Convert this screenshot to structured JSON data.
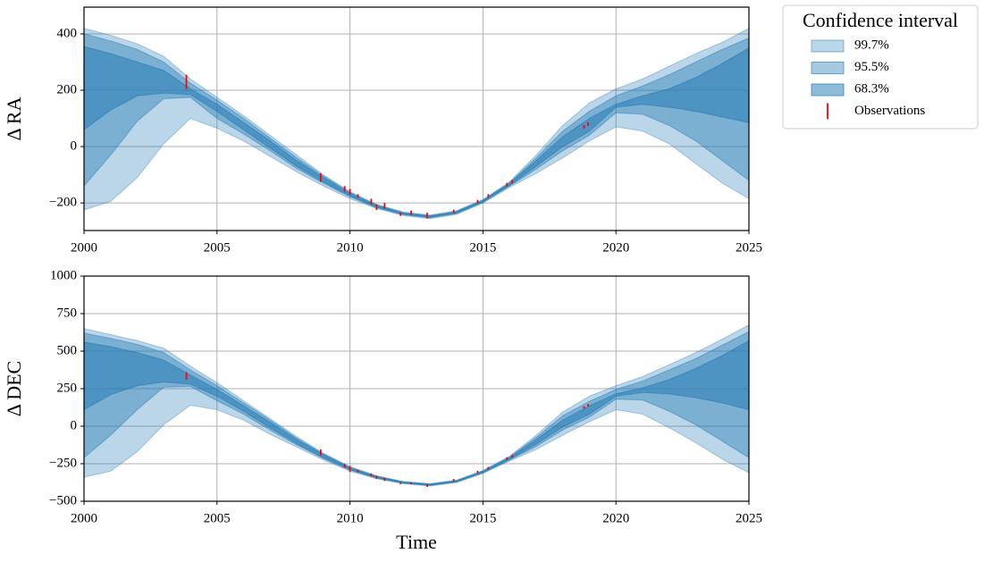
{
  "chart_data": [
    {
      "type": "band",
      "ylabel": "Δ RA",
      "xlim": [
        2000,
        2025
      ],
      "xticks": [
        2000,
        2005,
        2010,
        2015,
        2020,
        2025
      ],
      "ylim": [
        -298,
        495
      ],
      "yticks": [
        {
          "value": -200,
          "label": "−200"
        },
        0,
        200,
        400
      ],
      "grid": true,
      "legend": {
        "title": "Confidence interval",
        "loc": "outside upper right"
      },
      "x": [
        2000,
        2001,
        2002,
        2003,
        2004,
        2005,
        2006,
        2007,
        2008,
        2009,
        2010,
        2011,
        2012,
        2013,
        2014,
        2015,
        2016,
        2017,
        2018,
        2019,
        2020,
        2021,
        2022,
        2023,
        2024,
        2025
      ],
      "series": [
        {
          "name": "99.7%",
          "color": "#1f77b4",
          "alpha": 0.3,
          "upper": [
            420,
            395,
            365,
            320,
            240,
            175,
            110,
            40,
            -30,
            -100,
            -160,
            -205,
            -232,
            -243,
            -228,
            -188,
            -125,
            -30,
            75,
            155,
            205,
            240,
            285,
            330,
            370,
            420
          ],
          "lower": [
            -225,
            -195,
            -110,
            10,
            100,
            65,
            20,
            -35,
            -90,
            -140,
            -185,
            -220,
            -245,
            -256,
            -241,
            -201,
            -145,
            -95,
            -40,
            20,
            70,
            55,
            10,
            -60,
            -130,
            -185
          ]
        },
        {
          "name": "95.5%",
          "color": "#1f77b4",
          "alpha": 0.4,
          "upper": [
            400,
            375,
            345,
            300,
            225,
            165,
            100,
            30,
            -40,
            -105,
            -163,
            -207,
            -234,
            -245,
            -230,
            -190,
            -128,
            -40,
            55,
            125,
            180,
            215,
            255,
            300,
            345,
            385
          ],
          "lower": [
            -140,
            -30,
            90,
            170,
            175,
            100,
            45,
            -15,
            -78,
            -130,
            -178,
            -217,
            -242,
            -253,
            -238,
            -198,
            -140,
            -80,
            -15,
            40,
            120,
            115,
            75,
            20,
            -50,
            -120
          ]
        },
        {
          "name": "68.3%",
          "color": "#1f77b4",
          "alpha": 0.5,
          "upper": [
            355,
            330,
            300,
            270,
            205,
            150,
            85,
            20,
            -50,
            -110,
            -167,
            -210,
            -236,
            -247,
            -232,
            -192,
            -131,
            -50,
            35,
            100,
            150,
            180,
            205,
            245,
            295,
            350
          ],
          "lower": [
            60,
            130,
            180,
            190,
            185,
            125,
            60,
            -5,
            -70,
            -125,
            -175,
            -215,
            -240,
            -251,
            -236,
            -196,
            -137,
            -70,
            0,
            55,
            140,
            150,
            140,
            125,
            105,
            85
          ]
        },
        {
          "name": "Observations",
          "color": "#ff0000",
          "x": [
            2003.85,
            2008.9,
            2009.8,
            2010,
            2010.3,
            2010.8,
            2011,
            2011.3,
            2011.9,
            2012.3,
            2012.9,
            2013.9,
            2014.8,
            2015.2,
            2015.9,
            2016.1,
            2018.8,
            2018.95
          ],
          "values": [
            230,
            -110,
            -150,
            -160,
            -175,
            -195,
            -215,
            -210,
            -240,
            -235,
            -245,
            -230,
            -195,
            -175,
            -135,
            -125,
            70,
            80
          ],
          "errors": [
            25,
            15,
            10,
            10,
            6,
            10,
            10,
            10,
            6,
            8,
            10,
            6,
            6,
            6,
            6,
            6,
            6,
            6
          ]
        }
      ]
    },
    {
      "type": "band",
      "ylabel": "Δ DEC",
      "xlabel": "Time",
      "xlim": [
        2000,
        2025
      ],
      "xticks": [
        2000,
        2005,
        2010,
        2015,
        2020,
        2025
      ],
      "ylim": [
        -500,
        1000
      ],
      "yticks": [
        {
          "value": -500,
          "label": "−500"
        },
        {
          "value": -250,
          "label": "−250"
        },
        0,
        250,
        500,
        750,
        1000
      ],
      "grid": true,
      "x": [
        2000,
        2001,
        2002,
        2003,
        2004,
        2005,
        2006,
        2007,
        2008,
        2009,
        2010,
        2011,
        2012,
        2013,
        2014,
        2015,
        2016,
        2017,
        2018,
        2019,
        2020,
        2021,
        2022,
        2023,
        2024,
        2025
      ],
      "series": [
        {
          "color": "#1f77b4",
          "alpha": 0.3,
          "upper": [
            650,
            610,
            570,
            520,
            400,
            290,
            170,
            50,
            -70,
            -180,
            -270,
            -330,
            -368,
            -383,
            -360,
            -295,
            -200,
            -60,
            95,
            200,
            270,
            330,
            410,
            490,
            580,
            675
          ],
          "lower": [
            -340,
            -300,
            -170,
            10,
            140,
            110,
            40,
            -55,
            -140,
            -225,
            -300,
            -350,
            -383,
            -398,
            -375,
            -315,
            -232,
            -155,
            -60,
            30,
            110,
            80,
            -10,
            -110,
            -220,
            -310
          ]
        },
        {
          "color": "#1f77b4",
          "alpha": 0.4,
          "upper": [
            620,
            585,
            545,
            490,
            375,
            270,
            155,
            40,
            -80,
            -185,
            -273,
            -333,
            -370,
            -385,
            -362,
            -298,
            -205,
            -75,
            70,
            165,
            245,
            300,
            375,
            450,
            540,
            630
          ],
          "lower": [
            -210,
            -60,
            110,
            260,
            265,
            170,
            80,
            -25,
            -125,
            -215,
            -292,
            -346,
            -380,
            -395,
            -372,
            -311,
            -225,
            -135,
            -25,
            60,
            180,
            175,
            100,
            10,
            -100,
            -210
          ]
        },
        {
          "color": "#1f77b4",
          "alpha": 0.5,
          "upper": [
            560,
            530,
            490,
            440,
            340,
            245,
            135,
            25,
            -90,
            -190,
            -278,
            -336,
            -373,
            -388,
            -365,
            -302,
            -210,
            -90,
            40,
            135,
            215,
            255,
            310,
            385,
            470,
            570
          ],
          "lower": [
            110,
            210,
            270,
            295,
            280,
            200,
            100,
            -10,
            -115,
            -210,
            -288,
            -343,
            -378,
            -393,
            -370,
            -308,
            -220,
            -120,
            -5,
            80,
            200,
            225,
            215,
            190,
            155,
            110
          ]
        },
        {
          "color": "#ff0000",
          "x": [
            2003.85,
            2008.9,
            2009.8,
            2010,
            2010.3,
            2010.8,
            2011,
            2011.3,
            2011.9,
            2012.3,
            2012.9,
            2013.9,
            2014.8,
            2015.2,
            2015.9,
            2016.1,
            2018.8,
            2018.95
          ],
          "values": [
            335,
            -175,
            -265,
            -285,
            -300,
            -325,
            -340,
            -355,
            -380,
            -380,
            -395,
            -360,
            -305,
            -280,
            -215,
            -200,
            125,
            140
          ],
          "errors": [
            25,
            20,
            12,
            20,
            8,
            10,
            10,
            10,
            6,
            6,
            10,
            8,
            8,
            8,
            8,
            8,
            8,
            8
          ]
        }
      ]
    }
  ]
}
